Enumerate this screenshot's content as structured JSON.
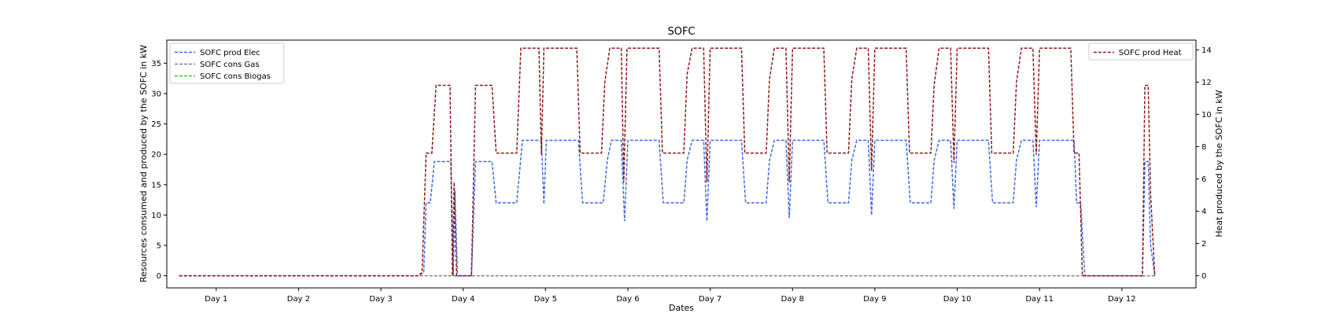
{
  "chart_data": {
    "type": "line",
    "title": "SOFC",
    "xlabel": "Dates",
    "ylabel_left": "Resources consumed and produced by the SOFC in kW",
    "ylabel_right": "Heat produced by the SOFC in kW",
    "x_ticks": [
      "Day 1",
      "Day 2",
      "Day 3",
      "Day 4",
      "Day 5",
      "Day 6",
      "Day 7",
      "Day 8",
      "Day 9",
      "Day 10",
      "Day 11",
      "Day 12"
    ],
    "xlim": [
      0.4,
      12.9
    ],
    "ylim_left": [
      -2,
      38.8
    ],
    "ylim_right": [
      -0.75,
      14.6
    ],
    "y_ticks_left": [
      0,
      5,
      10,
      15,
      20,
      25,
      30,
      35
    ],
    "y_ticks_right": [
      0,
      2,
      4,
      6,
      8,
      10,
      12,
      14
    ],
    "legend_left_position": "upper left",
    "legend_right_position": "upper right",
    "series": [
      {
        "name": "SOFC prod Elec",
        "axis": "left",
        "color": "#4169e1",
        "style": "dashed",
        "points": [
          [
            0.55,
            0
          ],
          [
            3.45,
            0
          ],
          [
            3.52,
            0.5
          ],
          [
            3.55,
            12
          ],
          [
            3.6,
            12
          ],
          [
            3.65,
            18.8
          ],
          [
            3.85,
            18.8
          ],
          [
            3.88,
            0
          ],
          [
            3.9,
            14
          ],
          [
            3.93,
            0
          ],
          [
            4.1,
            0
          ],
          [
            4.15,
            18.8
          ],
          [
            4.35,
            18.8
          ],
          [
            4.4,
            12
          ],
          [
            4.65,
            12
          ],
          [
            4.72,
            22.3
          ],
          [
            4.95,
            22.3
          ],
          [
            4.98,
            11.8
          ],
          [
            5.01,
            22.3
          ],
          [
            5.4,
            22.3
          ],
          [
            5.45,
            12
          ],
          [
            5.7,
            12
          ],
          [
            5.75,
            19
          ],
          [
            5.8,
            22.3
          ],
          [
            5.92,
            22.3
          ],
          [
            5.96,
            9
          ],
          [
            6.0,
            22.3
          ],
          [
            6.38,
            22.3
          ],
          [
            6.43,
            12
          ],
          [
            6.68,
            12
          ],
          [
            6.72,
            19
          ],
          [
            6.78,
            22.3
          ],
          [
            6.92,
            22.3
          ],
          [
            6.96,
            9
          ],
          [
            7.0,
            22.3
          ],
          [
            7.38,
            22.3
          ],
          [
            7.43,
            12
          ],
          [
            7.68,
            12
          ],
          [
            7.72,
            19
          ],
          [
            7.78,
            22.3
          ],
          [
            7.92,
            22.3
          ],
          [
            7.96,
            9.5
          ],
          [
            8.0,
            22.3
          ],
          [
            8.38,
            22.3
          ],
          [
            8.43,
            12
          ],
          [
            8.68,
            12
          ],
          [
            8.72,
            19
          ],
          [
            8.78,
            22.3
          ],
          [
            8.92,
            22.3
          ],
          [
            8.96,
            10
          ],
          [
            9.0,
            22.3
          ],
          [
            9.38,
            22.3
          ],
          [
            9.43,
            12
          ],
          [
            9.68,
            12
          ],
          [
            9.72,
            19
          ],
          [
            9.78,
            22.3
          ],
          [
            9.92,
            22.3
          ],
          [
            9.96,
            11
          ],
          [
            10.0,
            22.3
          ],
          [
            10.38,
            22.3
          ],
          [
            10.43,
            12
          ],
          [
            10.68,
            12
          ],
          [
            10.72,
            19
          ],
          [
            10.78,
            22.3
          ],
          [
            10.92,
            22.3
          ],
          [
            10.96,
            11.3
          ],
          [
            11.0,
            22.3
          ],
          [
            11.42,
            22.3
          ],
          [
            11.45,
            12
          ],
          [
            11.5,
            12
          ],
          [
            11.55,
            0
          ],
          [
            12.25,
            0
          ],
          [
            12.28,
            18.8
          ],
          [
            12.32,
            18.8
          ],
          [
            12.35,
            5
          ],
          [
            12.4,
            0
          ]
        ]
      },
      {
        "name": "SOFC cons Gas",
        "axis": "left",
        "color": "#808080",
        "style": "dashed",
        "points": [
          [
            0.55,
            0
          ],
          [
            12.4,
            0
          ]
        ]
      },
      {
        "name": "SOFC cons Biogas",
        "axis": "left",
        "color": "#32cd32",
        "style": "dashed",
        "points": []
      },
      {
        "name": "SOFC prod Heat",
        "axis": "right",
        "color": "#8b1a1a",
        "style": "dashed",
        "points": [
          [
            0.55,
            0
          ],
          [
            3.45,
            0
          ],
          [
            3.5,
            0.2
          ],
          [
            3.55,
            7.6
          ],
          [
            3.62,
            7.6
          ],
          [
            3.67,
            11.8
          ],
          [
            3.84,
            11.8
          ],
          [
            3.87,
            0
          ],
          [
            3.89,
            5.8
          ],
          [
            3.92,
            0
          ],
          [
            4.1,
            0
          ],
          [
            4.15,
            11.8
          ],
          [
            4.35,
            11.8
          ],
          [
            4.4,
            7.6
          ],
          [
            4.65,
            7.6
          ],
          [
            4.7,
            14.1
          ],
          [
            4.92,
            14.1
          ],
          [
            4.95,
            7.5
          ],
          [
            4.98,
            14.1
          ],
          [
            5.38,
            14.1
          ],
          [
            5.42,
            7.6
          ],
          [
            5.68,
            7.6
          ],
          [
            5.72,
            12
          ],
          [
            5.78,
            14.1
          ],
          [
            5.92,
            14.1
          ],
          [
            5.95,
            5.8
          ],
          [
            5.99,
            14.1
          ],
          [
            6.38,
            14.1
          ],
          [
            6.42,
            7.6
          ],
          [
            6.68,
            7.6
          ],
          [
            6.72,
            12.5
          ],
          [
            6.78,
            14.1
          ],
          [
            6.92,
            14.1
          ],
          [
            6.96,
            5.8
          ],
          [
            7.0,
            14.1
          ],
          [
            7.38,
            14.1
          ],
          [
            7.42,
            7.6
          ],
          [
            7.68,
            7.6
          ],
          [
            7.72,
            12.2
          ],
          [
            7.78,
            14.1
          ],
          [
            7.92,
            14.1
          ],
          [
            7.96,
            5.8
          ],
          [
            8.0,
            14.1
          ],
          [
            8.38,
            14.1
          ],
          [
            8.42,
            7.6
          ],
          [
            8.68,
            7.6
          ],
          [
            8.72,
            12.2
          ],
          [
            8.78,
            14.1
          ],
          [
            8.92,
            14.1
          ],
          [
            8.96,
            6.5
          ],
          [
            9.0,
            14.1
          ],
          [
            9.38,
            14.1
          ],
          [
            9.42,
            7.6
          ],
          [
            9.68,
            7.6
          ],
          [
            9.72,
            11.8
          ],
          [
            9.78,
            14.1
          ],
          [
            9.92,
            14.1
          ],
          [
            9.96,
            7
          ],
          [
            10.0,
            14.1
          ],
          [
            10.38,
            14.1
          ],
          [
            10.42,
            7.6
          ],
          [
            10.68,
            7.6
          ],
          [
            10.72,
            12
          ],
          [
            10.78,
            14.1
          ],
          [
            10.92,
            14.1
          ],
          [
            10.96,
            7.5
          ],
          [
            11.0,
            14.1
          ],
          [
            11.38,
            14.1
          ],
          [
            11.42,
            7.6
          ],
          [
            11.48,
            7.6
          ],
          [
            11.52,
            0
          ],
          [
            12.25,
            0
          ],
          [
            12.28,
            11.8
          ],
          [
            12.32,
            11.8
          ],
          [
            12.35,
            5
          ],
          [
            12.4,
            0
          ]
        ]
      }
    ]
  }
}
